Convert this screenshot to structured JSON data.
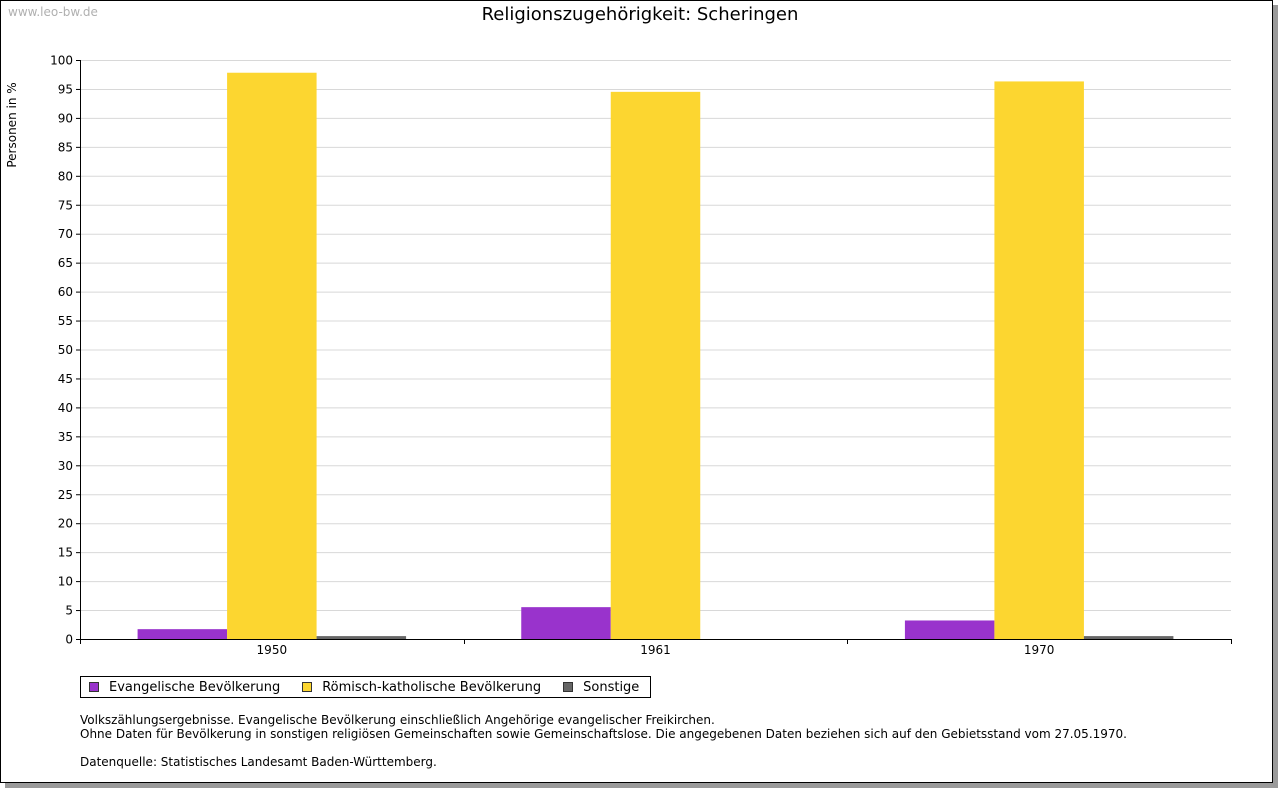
{
  "watermark": "www.leo-bw.de",
  "chart_data": {
    "type": "bar",
    "title": "Religionszugehörigkeit: Scheringen",
    "xlabel": "",
    "ylabel": "Personen in %",
    "ylim": [
      0,
      100
    ],
    "yticks": [
      0,
      5,
      10,
      15,
      20,
      25,
      30,
      35,
      40,
      45,
      50,
      55,
      60,
      65,
      70,
      75,
      80,
      85,
      90,
      95,
      100
    ],
    "grid": true,
    "legend_position": "bottom-left",
    "categories": [
      "1950",
      "1961",
      "1970"
    ],
    "series": [
      {
        "name": "Evangelische Bevölkerung",
        "color": "#9933cc",
        "values": [
          1.7,
          5.5,
          3.2
        ]
      },
      {
        "name": "Römisch-katholische Bevölkerung",
        "color": "#fcd630",
        "values": [
          97.8,
          94.5,
          96.3
        ]
      },
      {
        "name": "Sonstige",
        "color": "#666666",
        "values": [
          0.5,
          0.0,
          0.5
        ]
      }
    ]
  },
  "notes": {
    "line1": "Volkszählungsergebnisse. Evangelische Bevölkerung einschließlich Angehörige evangelischer Freikirchen.",
    "line2": "Ohne Daten für Bevölkerung in sonstigen religiösen Gemeinschaften sowie Gemeinschaftslose. Die angegebenen Daten beziehen sich auf den Gebietsstand vom 27.05.1970.",
    "source": "Datenquelle: Statistisches Landesamt Baden-Württemberg."
  }
}
